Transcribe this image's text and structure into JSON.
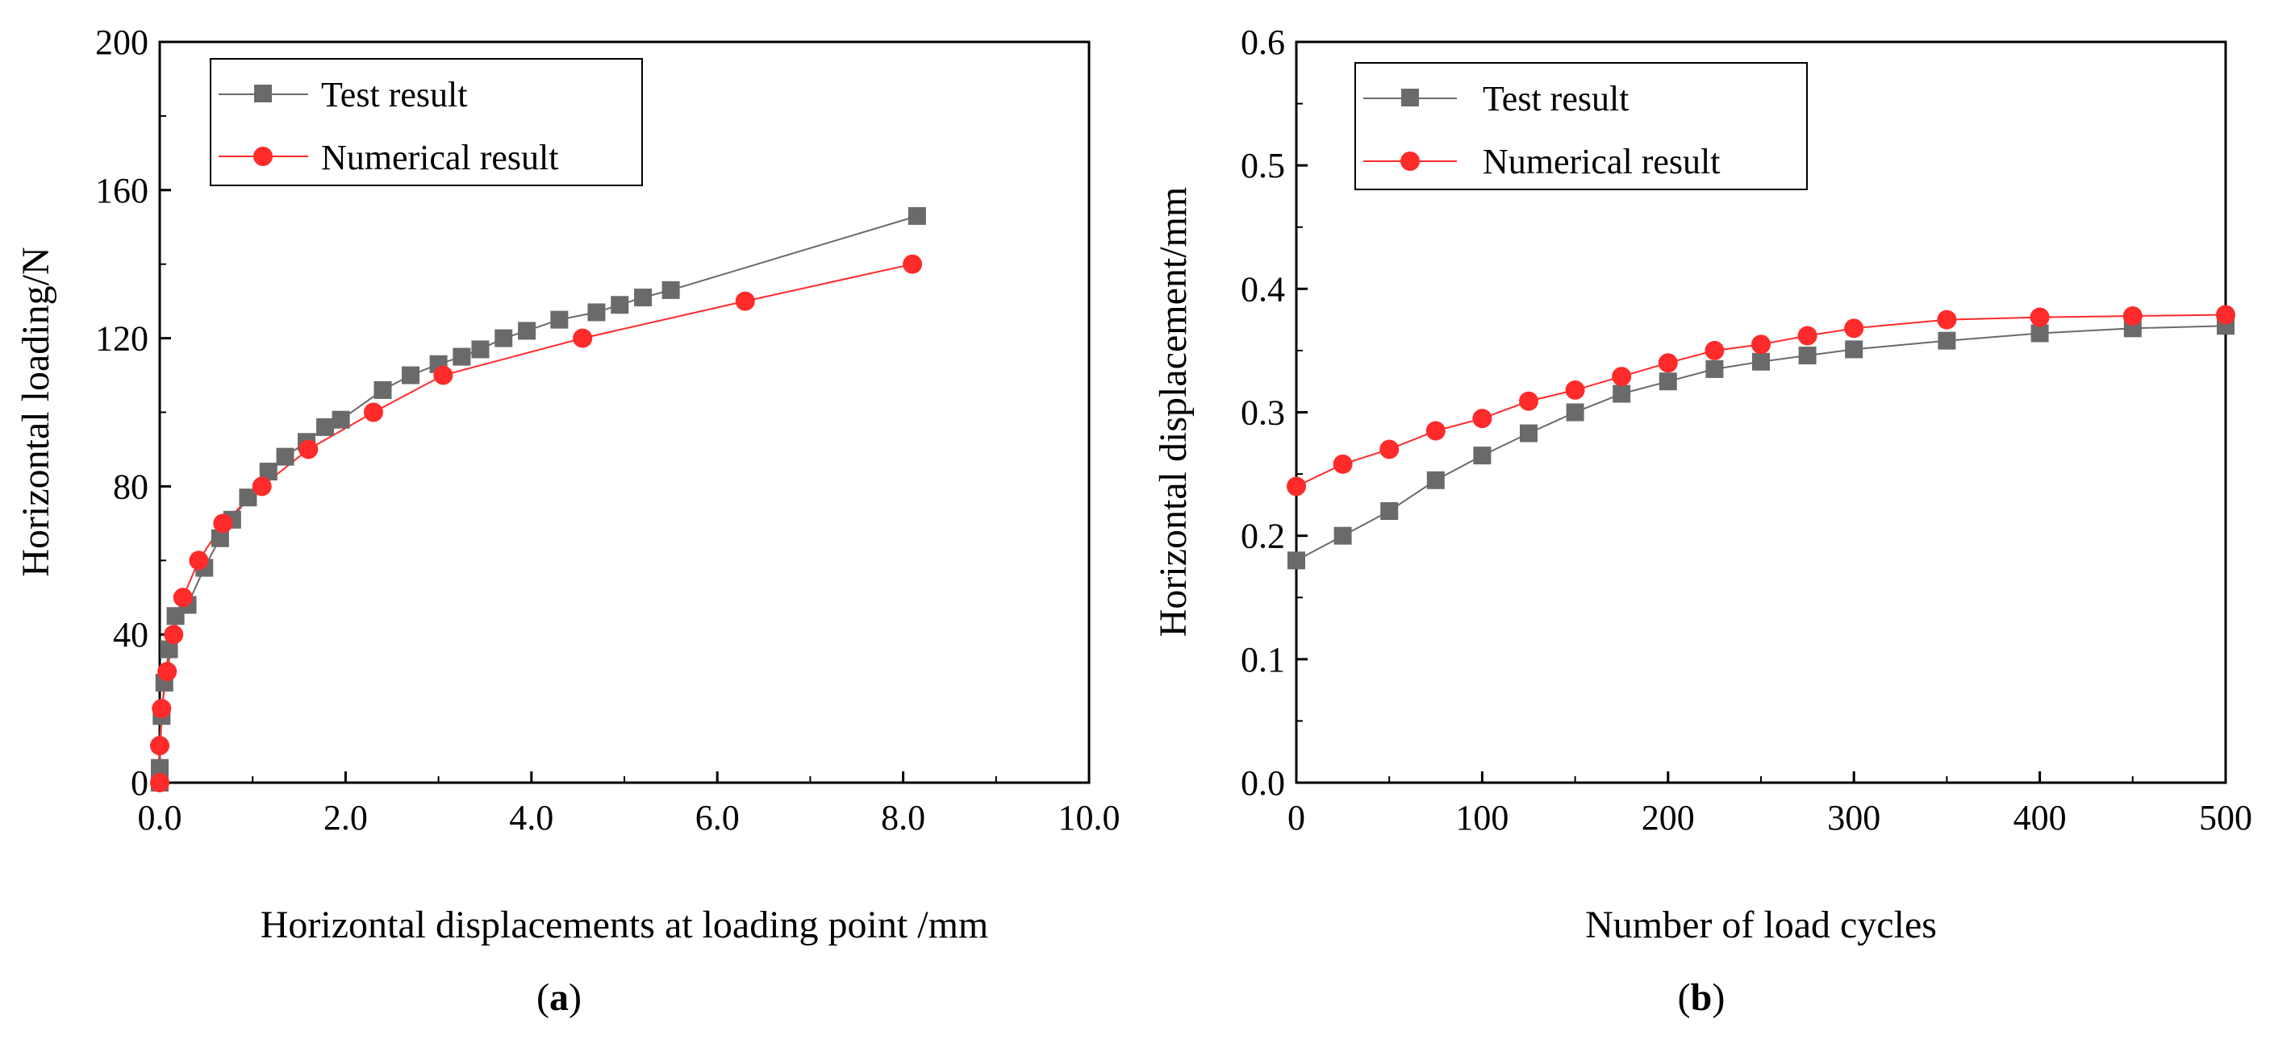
{
  "colors": {
    "test": "#6a6a6a",
    "numerical": "#ff2a2a",
    "axis": "#000000"
  },
  "chart_data": [
    {
      "type": "line",
      "panel": "a",
      "caption": {
        "open": "(",
        "letter": "a",
        "close": ")"
      },
      "xlabel": "Horizontal displacements at loading point /mm",
      "ylabel": "Horizontal loading/N",
      "xlim": [
        0,
        10
      ],
      "ylim": [
        0,
        200
      ],
      "xticks": [
        "0.0",
        "2.0",
        "4.0",
        "6.0",
        "8.0",
        "10.0"
      ],
      "yticks": [
        "0",
        "40",
        "80",
        "120",
        "160",
        "200"
      ],
      "legend_position": "top-left",
      "series": [
        {
          "name": "Test result",
          "marker": "square",
          "color": "#6a6a6a",
          "x": [
            0.0,
            0.0,
            0.02,
            0.05,
            0.1,
            0.17,
            0.3,
            0.48,
            0.65,
            0.78,
            0.95,
            1.17,
            1.35,
            1.58,
            1.78,
            1.95,
            2.4,
            2.7,
            3.0,
            3.25,
            3.45,
            3.7,
            3.95,
            4.3,
            4.7,
            4.95,
            5.2,
            5.5,
            8.15
          ],
          "y": [
            0,
            4,
            18,
            27,
            36,
            45,
            48,
            58,
            66,
            71,
            77,
            84,
            88,
            92,
            96,
            98,
            106,
            110,
            113,
            115,
            117,
            120,
            122,
            125,
            127,
            129,
            131,
            133,
            153
          ]
        },
        {
          "name": "Numerical result",
          "marker": "circle",
          "color": "#ff2a2a",
          "x": [
            0.0,
            0.0,
            0.02,
            0.08,
            0.15,
            0.25,
            0.42,
            0.68,
            1.1,
            1.6,
            2.3,
            3.05,
            4.55,
            6.3,
            8.1
          ],
          "y": [
            0,
            10,
            20,
            30,
            40,
            50,
            60,
            70,
            80,
            90,
            100,
            110,
            120,
            130,
            140
          ]
        }
      ]
    },
    {
      "type": "line",
      "panel": "b",
      "caption": {
        "open": "(",
        "letter": "b",
        "close": ")"
      },
      "xlabel": "Number of load cycles",
      "ylabel": "Horizontal displacement/mm",
      "xlim": [
        0,
        500
      ],
      "ylim": [
        0.0,
        0.6
      ],
      "xticks": [
        "0",
        "100",
        "200",
        "300",
        "400",
        "500"
      ],
      "yticks": [
        "0.0",
        "0.1",
        "0.2",
        "0.3",
        "0.4",
        "0.5",
        "0.6"
      ],
      "legend_position": "top-left",
      "series": [
        {
          "name": "Test result",
          "marker": "square",
          "color": "#6a6a6a",
          "x": [
            0,
            25,
            50,
            75,
            100,
            125,
            150,
            175,
            200,
            225,
            250,
            275,
            300,
            350,
            400,
            450,
            500
          ],
          "y": [
            0.18,
            0.2,
            0.22,
            0.245,
            0.265,
            0.283,
            0.3,
            0.315,
            0.325,
            0.335,
            0.341,
            0.346,
            0.351,
            0.358,
            0.364,
            0.368,
            0.37
          ]
        },
        {
          "name": "Numerical result",
          "marker": "circle",
          "color": "#ff2a2a",
          "x": [
            0,
            25,
            50,
            75,
            100,
            125,
            150,
            175,
            200,
            225,
            250,
            275,
            300,
            350,
            400,
            450,
            500
          ],
          "y": [
            0.24,
            0.258,
            0.27,
            0.285,
            0.295,
            0.309,
            0.318,
            0.329,
            0.34,
            0.35,
            0.355,
            0.362,
            0.368,
            0.375,
            0.377,
            0.378,
            0.379
          ]
        }
      ]
    }
  ]
}
